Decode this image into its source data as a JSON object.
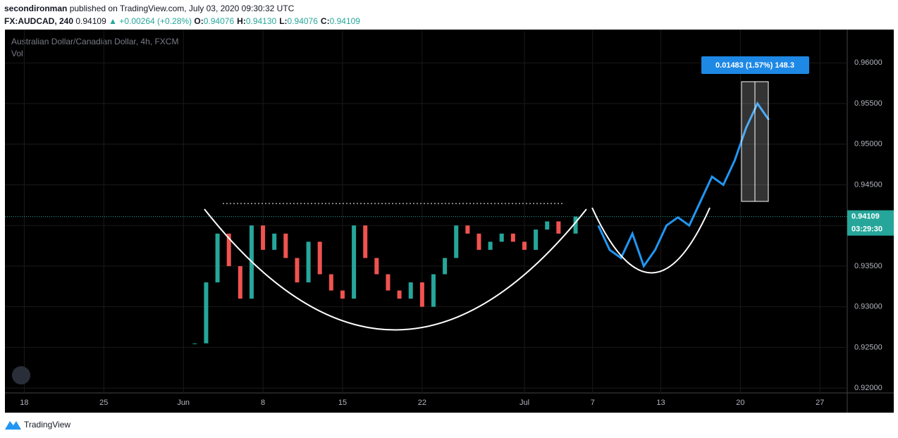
{
  "header": {
    "author": "secondironman",
    "published": "published on TradingView.com, July 03, 2020 09:30:32 UTC",
    "symbol": "FX:AUDCAD, 240",
    "price": "0.94109",
    "change": "▲ +0.00264 (+0.28%)",
    "ohlc": [
      {
        "label": "O:",
        "value": "0.94076"
      },
      {
        "label": "H:",
        "value": "0.94130"
      },
      {
        "label": "L:",
        "value": "0.94076"
      },
      {
        "label": "C:",
        "value": "0.94109"
      }
    ]
  },
  "chart_data": {
    "type": "candles",
    "title": "Australian Dollar/Canadian Dollar, 4h, FXCM",
    "subtitle": "Vol",
    "series": [
      {
        "color": "#ef5350",
        "up_color": "#26a69a",
        "x": [
          15,
          16,
          17,
          18,
          19,
          20,
          21,
          22,
          23,
          24,
          25,
          26,
          27,
          28,
          29,
          30,
          31,
          32,
          33,
          34,
          35,
          36,
          37,
          38,
          39,
          40,
          41,
          42,
          43,
          44,
          45,
          46,
          47,
          48.5
        ],
        "values": [
          0.9255,
          0.933,
          0.939,
          0.935,
          0.931,
          0.94,
          0.937,
          0.939,
          0.936,
          0.933,
          0.938,
          0.934,
          0.932,
          0.931,
          0.94,
          0.936,
          0.934,
          0.932,
          0.931,
          0.933,
          0.93,
          0.934,
          0.936,
          0.94,
          0.939,
          0.937,
          0.938,
          0.939,
          0.938,
          0.937,
          0.9395,
          0.9405,
          0.939,
          0.9411
        ]
      },
      {
        "color": "#2196f3",
        "x": [
          50.5,
          51.5,
          52.5,
          53.5,
          54.5,
          55.5,
          56.5,
          57.5,
          58.5,
          59.5,
          60.5,
          61.5,
          62.5,
          63.5,
          64.5,
          65.5
        ],
        "values": [
          0.94,
          0.937,
          0.936,
          0.939,
          0.935,
          0.937,
          0.94,
          0.941,
          0.94,
          0.943,
          0.946,
          0.945,
          0.948,
          0.952,
          0.955,
          0.953
        ]
      }
    ],
    "xlim": [
      -1.7,
      72.4
    ],
    "xticks": [
      {
        "value": 0,
        "label": "18"
      },
      {
        "value": 7,
        "label": "25"
      },
      {
        "value": 14,
        "label": "Jun"
      },
      {
        "value": 21,
        "label": "8"
      },
      {
        "value": 28,
        "label": "15"
      },
      {
        "value": 35,
        "label": "22"
      },
      {
        "value": 44,
        "label": "Jul"
      },
      {
        "value": 50,
        "label": "7"
      },
      {
        "value": 56,
        "label": "13"
      },
      {
        "value": 63,
        "label": "20"
      },
      {
        "value": 70,
        "label": "27"
      }
    ],
    "ylim": [
      0.9194,
      0.9641
    ],
    "yticks": [
      {
        "value": 0.92,
        "label": "0.92000"
      },
      {
        "value": 0.925,
        "label": "0.92500"
      },
      {
        "value": 0.93,
        "label": "0.93000"
      },
      {
        "value": 0.935,
        "label": "0.93500"
      },
      {
        "value": 0.94,
        "label": "0.94000"
      },
      {
        "value": 0.945,
        "label": "0.94500"
      },
      {
        "value": 0.95,
        "label": "0.95000"
      },
      {
        "value": 0.955,
        "label": "0.95500"
      },
      {
        "value": 0.96,
        "label": "0.96000"
      }
    ],
    "last_price": 0.94109,
    "last_price_label": "0.94109",
    "countdown": "03:29:30",
    "measure_label": "0.01483 (1.57%) 148.3"
  },
  "footer": {
    "brand": "TradingView"
  }
}
